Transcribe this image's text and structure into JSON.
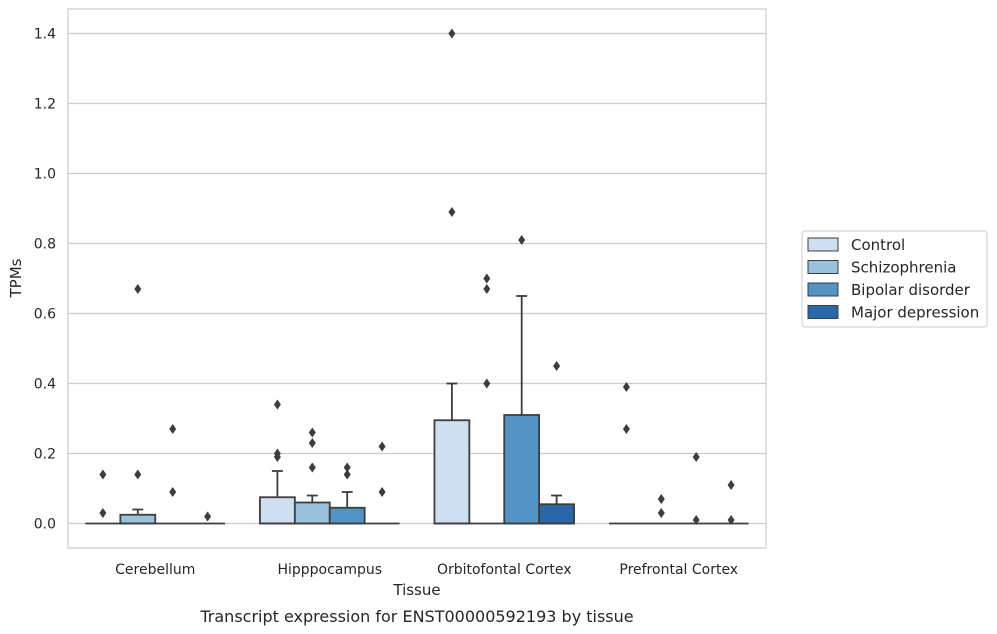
{
  "chart_data": {
    "type": "bar",
    "caption": "Transcript expression for ENST00000592193 by tissue",
    "xlabel": "Tissue",
    "ylabel": "TPMs",
    "ylim": [
      -0.07,
      1.47
    ],
    "yticks": [
      "0.0",
      "0.2",
      "0.4",
      "0.6",
      "0.8",
      "1.0",
      "1.2",
      "1.4"
    ],
    "grid": "horizontal",
    "legend_position": "right",
    "categories": [
      "Cerebellum",
      "Hipppocampus",
      "Orbitofontal Cortex",
      "Prefrontal Cortex"
    ],
    "series": [
      {
        "name": "Control",
        "color": "#cfdfef",
        "values": [
          0.0,
          0.075,
          0.295,
          0.0
        ],
        "error_upper": [
          0.0,
          0.15,
          0.4,
          0.0
        ],
        "outliers": [
          [
            0.14,
            0.03
          ],
          [
            0.34,
            0.2,
            0.19
          ],
          [
            1.4,
            0.89
          ],
          [
            0.39,
            0.27
          ]
        ]
      },
      {
        "name": "Schizophrenia",
        "color": "#9ac2da",
        "values": [
          0.025,
          0.06,
          0.0,
          0.0
        ],
        "error_upper": [
          0.04,
          0.08,
          0.0,
          0.0
        ],
        "outliers": [
          [
            0.67,
            0.14
          ],
          [
            0.26,
            0.23,
            0.16
          ],
          [
            0.7,
            0.67,
            0.4
          ],
          [
            0.07,
            0.03
          ]
        ]
      },
      {
        "name": "Bipolar disorder",
        "color": "#5494c4",
        "values": [
          0.0,
          0.045,
          0.31,
          0.0
        ],
        "error_upper": [
          0.0,
          0.09,
          0.65,
          0.0
        ],
        "outliers": [
          [
            0.27,
            0.09
          ],
          [
            0.16,
            0.14
          ],
          [
            0.81
          ],
          [
            0.19,
            0.01
          ]
        ]
      },
      {
        "name": "Major depression",
        "color": "#2a67a8",
        "values": [
          0.0,
          0.0,
          0.055,
          0.0
        ],
        "error_upper": [
          0.0,
          0.0,
          0.08,
          0.0
        ],
        "outliers": [
          [
            0.02
          ],
          [
            0.22,
            0.09
          ],
          [
            0.45
          ],
          [
            0.11,
            0.01
          ]
        ]
      }
    ]
  }
}
